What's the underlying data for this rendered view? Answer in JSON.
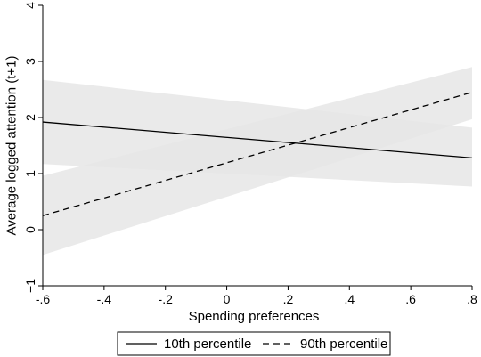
{
  "chart_data": {
    "type": "line",
    "title": "",
    "xlabel": "Spending preferences",
    "ylabel": "Average logged attention (t+1)",
    "xlim": [
      -0.6,
      0.8
    ],
    "ylim": [
      -1,
      4
    ],
    "x_ticks": [
      -0.6,
      -0.4,
      -0.2,
      0,
      0.2,
      0.4,
      0.6,
      0.8
    ],
    "x_tick_labels": [
      "-.6",
      "-.4",
      "-.2",
      "0",
      ".2",
      ".4",
      ".6",
      ".8"
    ],
    "y_ticks": [
      -1,
      0,
      1,
      2,
      3,
      4
    ],
    "y_tick_labels": [
      "−1",
      "0",
      "1",
      "2",
      "3",
      "4"
    ],
    "grid": false,
    "legend_position": "bottom",
    "series": [
      {
        "name": "10th percentile",
        "line_style": "solid",
        "color": "#000000",
        "band_color": "#e6e6e6",
        "x": [
          -0.6,
          0.8
        ],
        "y": [
          1.92,
          1.28
        ],
        "ci_upper": [
          2.67,
          1.82
        ],
        "ci_lower": [
          1.17,
          0.77
        ]
      },
      {
        "name": "90th percentile",
        "line_style": "dashed",
        "color": "#000000",
        "band_color": "#e6e6e6",
        "x": [
          -0.6,
          0.8
        ],
        "y": [
          0.25,
          2.45
        ],
        "ci_upper": [
          0.96,
          2.9
        ],
        "ci_lower": [
          -0.45,
          1.97
        ]
      }
    ]
  }
}
